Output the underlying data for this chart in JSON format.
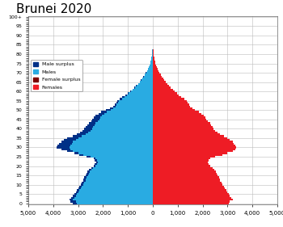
{
  "title": "Brunei 2020",
  "title_fontsize": 11,
  "male_color": "#29ABE2",
  "male_surplus_color": "#003087",
  "female_color": "#EE1C25",
  "female_surplus_color": "#7B0000",
  "background_color": "#FFFFFF",
  "grid_color": "#BBBBBB",
  "xlim": [
    -5000,
    5000
  ],
  "xticks": [
    -5000,
    -4000,
    -3000,
    -2000,
    -1000,
    0,
    1000,
    2000,
    3000,
    4000,
    5000
  ],
  "xtick_labels": [
    "5,000",
    "4,000",
    "3,000",
    "2,000",
    "1,000",
    "0",
    "1,000",
    "2,000",
    "3,000",
    "4,000",
    "5,000"
  ],
  "males": [
    3200,
    3300,
    3350,
    3280,
    3200,
    3150,
    3100,
    3050,
    3000,
    2950,
    2900,
    2850,
    2800,
    2780,
    2750,
    2700,
    2650,
    2620,
    2580,
    2480,
    2380,
    2330,
    2280,
    2330,
    2380,
    2650,
    2950,
    3150,
    3450,
    3680,
    3850,
    3820,
    3780,
    3680,
    3560,
    3430,
    3220,
    3050,
    2930,
    2820,
    2760,
    2700,
    2640,
    2580,
    2480,
    2420,
    2370,
    2310,
    2180,
    2080,
    1880,
    1730,
    1580,
    1520,
    1470,
    1420,
    1320,
    1220,
    1120,
    1020,
    920,
    820,
    750,
    670,
    600,
    530,
    480,
    430,
    380,
    330,
    280,
    240,
    200,
    165,
    138,
    112,
    92,
    74,
    60,
    46,
    36,
    27,
    19,
    14,
    10,
    7,
    5,
    4,
    3,
    2,
    1,
    1,
    0,
    0,
    0,
    0,
    0,
    0,
    0,
    0,
    0
  ],
  "females": [
    3050,
    3100,
    3200,
    3150,
    3100,
    3050,
    3000,
    2950,
    2900,
    2850,
    2800,
    2750,
    2700,
    2680,
    2650,
    2600,
    2550,
    2520,
    2480,
    2400,
    2300,
    2250,
    2200,
    2250,
    2300,
    2500,
    2800,
    3000,
    3200,
    3300,
    3350,
    3300,
    3250,
    3200,
    3100,
    3000,
    2850,
    2700,
    2600,
    2500,
    2450,
    2400,
    2350,
    2300,
    2200,
    2150,
    2100,
    2050,
    1950,
    1850,
    1700,
    1600,
    1500,
    1450,
    1400,
    1350,
    1250,
    1150,
    1050,
    980,
    880,
    800,
    730,
    650,
    570,
    510,
    460,
    410,
    360,
    310,
    270,
    230,
    190,
    155,
    130,
    105,
    85,
    68,
    55,
    43,
    33,
    25,
    18,
    13,
    9,
    7,
    5,
    3,
    2,
    2,
    1,
    1,
    1,
    0,
    0,
    0,
    0,
    0,
    0,
    0,
    0
  ]
}
